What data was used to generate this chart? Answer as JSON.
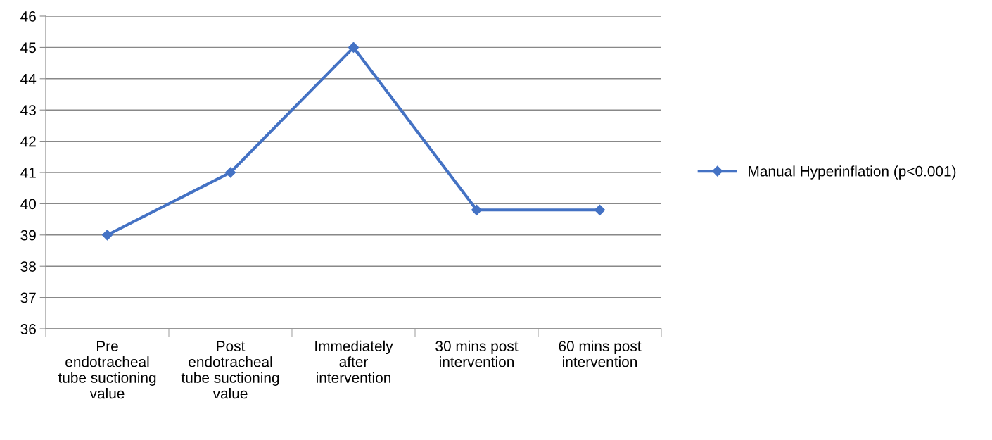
{
  "chart_data": {
    "type": "line",
    "categories": [
      "Pre\nendotracheal\ntube suctioning\nvalue",
      "Post\nendotracheal\ntube suctioning\nvalue",
      "Immediately\nafter\nintervention",
      "30 mins post\nintervention",
      "60 mins post\nintervention"
    ],
    "series": [
      {
        "name": "Manual Hyperinflation (p<0.001)",
        "color": "#4472c4",
        "values": [
          39,
          41.0,
          45,
          39.8,
          39.8
        ]
      }
    ],
    "ylim": [
      36,
      46
    ],
    "yticks": [
      36,
      37,
      38,
      39,
      40,
      41,
      42,
      43,
      44,
      45,
      46
    ],
    "grid": "y",
    "legend": "right",
    "marker": "diamond",
    "line_style": "solid"
  }
}
